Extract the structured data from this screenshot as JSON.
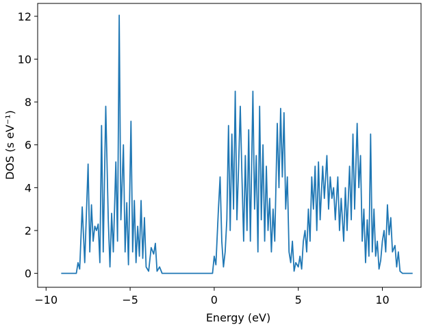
{
  "chart_data": {
    "type": "line",
    "xlabel": "Energy (eV)",
    "ylabel": "DOS (s eV⁻¹)",
    "xlim": [
      -10.5,
      12.3
    ],
    "ylim": [
      -0.65,
      12.6
    ],
    "xticks": [
      {
        "value": -10,
        "label": "−10"
      },
      {
        "value": -5,
        "label": "−5"
      },
      0,
      5,
      10
    ],
    "yticks": [
      0,
      2,
      4,
      6,
      8,
      10,
      12
    ],
    "grid": false,
    "series": [
      {
        "color": "#1f77b4",
        "x": [
          -9.1,
          -8.2,
          -8.1,
          -8.0,
          -7.85,
          -7.7,
          -7.5,
          -7.4,
          -7.3,
          -7.2,
          -7.1,
          -7.0,
          -6.9,
          -6.8,
          -6.7,
          -6.6,
          -6.45,
          -6.3,
          -6.2,
          -6.1,
          -6.0,
          -5.85,
          -5.75,
          -5.65,
          -5.55,
          -5.4,
          -5.3,
          -5.2,
          -5.1,
          -4.95,
          -4.85,
          -4.75,
          -4.65,
          -4.55,
          -4.45,
          -4.35,
          -4.25,
          -4.15,
          -4.05,
          -3.9,
          -3.75,
          -3.6,
          -3.5,
          -3.4,
          -3.25,
          -3.1,
          -0.1,
          0.0,
          0.1,
          0.25,
          0.35,
          0.45,
          0.55,
          0.65,
          0.75,
          0.85,
          0.95,
          1.05,
          1.15,
          1.25,
          1.35,
          1.45,
          1.55,
          1.65,
          1.75,
          1.85,
          1.95,
          2.05,
          2.15,
          2.3,
          2.4,
          2.5,
          2.6,
          2.7,
          2.8,
          2.9,
          3.0,
          3.1,
          3.2,
          3.3,
          3.4,
          3.5,
          3.6,
          3.75,
          3.85,
          3.95,
          4.05,
          4.15,
          4.25,
          4.35,
          4.45,
          4.55,
          4.65,
          4.75,
          4.85,
          5.0,
          5.1,
          5.2,
          5.3,
          5.4,
          5.5,
          5.6,
          5.7,
          5.8,
          5.9,
          6.0,
          6.1,
          6.2,
          6.3,
          6.45,
          6.55,
          6.7,
          6.8,
          6.9,
          7.0,
          7.1,
          7.2,
          7.35,
          7.45,
          7.55,
          7.7,
          7.8,
          7.9,
          8.05,
          8.15,
          8.25,
          8.35,
          8.5,
          8.6,
          8.7,
          8.8,
          8.9,
          9.0,
          9.1,
          9.2,
          9.3,
          9.4,
          9.5,
          9.6,
          9.7,
          9.8,
          9.9,
          10.0,
          10.1,
          10.2,
          10.3,
          10.4,
          10.5,
          10.6,
          10.75,
          10.85,
          10.95,
          11.05,
          11.2,
          11.8
        ],
        "values": [
          0,
          0,
          0.5,
          0.2,
          3.1,
          0.5,
          5.1,
          1.0,
          3.2,
          1.5,
          2.2,
          2.0,
          2.3,
          0.5,
          6.9,
          1.0,
          7.8,
          2.5,
          0.3,
          2.8,
          1.0,
          5.2,
          1.5,
          12.05,
          2.5,
          6.0,
          1.0,
          3.3,
          0.4,
          7.1,
          1.0,
          3.4,
          0.5,
          2.2,
          0.8,
          3.4,
          0.7,
          2.6,
          0.3,
          0.1,
          1.2,
          0.9,
          1.4,
          0.1,
          0.3,
          0,
          0,
          0.8,
          0.4,
          3.0,
          4.5,
          1.5,
          0.3,
          1.0,
          2.5,
          6.9,
          2.0,
          6.5,
          3.0,
          8.5,
          2.5,
          5.0,
          7.8,
          4.5,
          1.5,
          5.5,
          2.0,
          6.7,
          1.5,
          8.5,
          3.0,
          5.5,
          1.0,
          7.8,
          2.5,
          6.0,
          1.5,
          5.0,
          2.0,
          3.5,
          1.0,
          3.0,
          1.5,
          7.0,
          4.0,
          7.7,
          4.5,
          7.5,
          3.0,
          4.5,
          1.0,
          0.5,
          1.5,
          0.1,
          0.5,
          0.3,
          0.8,
          0.2,
          1.5,
          2.0,
          1.0,
          3.0,
          1.5,
          4.5,
          3.0,
          5.0,
          2.0,
          5.2,
          2.5,
          5.0,
          3.5,
          5.5,
          3.0,
          4.5,
          3.5,
          4.0,
          2.5,
          4.5,
          2.0,
          3.5,
          1.5,
          4.0,
          2.0,
          5.0,
          2.5,
          6.5,
          3.0,
          7.0,
          4.0,
          5.5,
          1.5,
          3.0,
          0.5,
          2.5,
          0.8,
          6.5,
          1.0,
          3.0,
          0.8,
          1.5,
          0.2,
          0.6,
          1.5,
          2.0,
          1.0,
          3.2,
          1.8,
          2.6,
          1.0,
          1.3,
          0.3,
          1.0,
          0.1,
          0,
          0
        ]
      }
    ]
  }
}
